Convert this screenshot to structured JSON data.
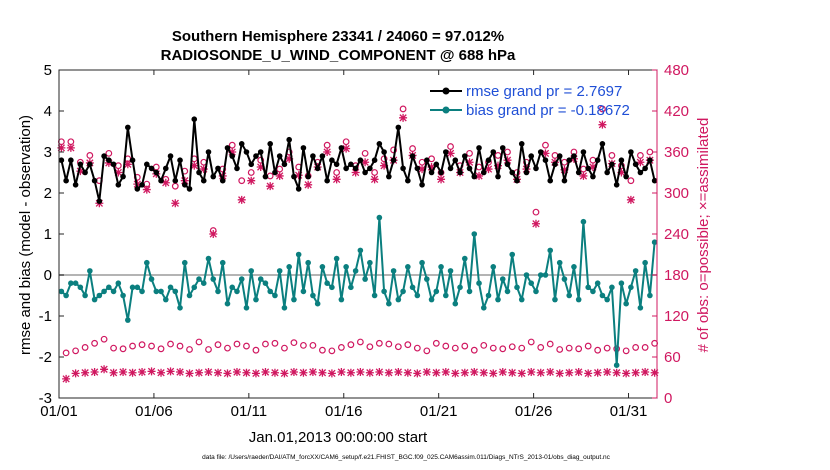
{
  "chart_data": {
    "type": "line",
    "title_line1": "Southern Hemisphere 23341 / 24060 = 97.012%",
    "title_line2": "RADIOSONDE_U_WIND_COMPONENT @ 688 hPa",
    "xlabel": "Jan.01,2013 00:00:00 start",
    "ylabel_left": "rmse and bias (model - observation)",
    "ylabel_right": "# of obs: o=possible; ×=assimilated",
    "xlim": [
      0,
      31.5
    ],
    "ylim_left": [
      -3,
      5
    ],
    "ylim_right": [
      0,
      480
    ],
    "x_ticks": [
      0,
      5,
      10,
      15,
      20,
      25,
      30
    ],
    "x_tick_labels": [
      "01/01",
      "01/06",
      "01/11",
      "01/16",
      "01/21",
      "01/26",
      "01/31"
    ],
    "y_ticks_left": [
      -3,
      -2,
      -1,
      0,
      1,
      2,
      3,
      4,
      5
    ],
    "y_tick_labels_left": [
      "-3",
      "-2",
      "-1",
      "0",
      "1",
      "2",
      "3",
      "4",
      "5"
    ],
    "y_ticks_right": [
      0,
      60,
      120,
      180,
      240,
      300,
      360,
      420,
      480
    ],
    "y_tick_labels_right": [
      "0",
      "60",
      "120",
      "180",
      "240",
      "300",
      "360",
      "420",
      "480"
    ],
    "legend": {
      "position": "top-right",
      "entries": [
        "rmse grand pr = 2.7697",
        "bias grand pr = -0.18672"
      ]
    },
    "footer": "data file: /Users/raeder/DAI/ATM_forcXX/CAM6_setup/f.e21.FHIST_BGC.f09_025.CAM6assim.011/Diags_NTrS_2013-01/obs_diag_output.nc",
    "colors": {
      "rmse": "#000000",
      "bias": "#0b7f7f",
      "obs": "#d01860",
      "zero_line": "#b4b4b4",
      "legend_text": "#1f4fd6"
    },
    "x": [
      0.125,
      0.375,
      0.625,
      0.875,
      1.125,
      1.375,
      1.625,
      1.875,
      2.125,
      2.375,
      2.625,
      2.875,
      3.125,
      3.375,
      3.625,
      3.875,
      4.125,
      4.375,
      4.625,
      4.875,
      5.125,
      5.375,
      5.625,
      5.875,
      6.125,
      6.375,
      6.625,
      6.875,
      7.125,
      7.375,
      7.625,
      7.875,
      8.125,
      8.375,
      8.625,
      8.875,
      9.125,
      9.375,
      9.625,
      9.875,
      10.125,
      10.375,
      10.625,
      10.875,
      11.125,
      11.375,
      11.625,
      11.875,
      12.125,
      12.375,
      12.625,
      12.875,
      13.125,
      13.375,
      13.625,
      13.875,
      14.125,
      14.375,
      14.625,
      14.875,
      15.125,
      15.375,
      15.625,
      15.875,
      16.125,
      16.375,
      16.625,
      16.875,
      17.125,
      17.375,
      17.625,
      17.875,
      18.125,
      18.375,
      18.625,
      18.875,
      19.125,
      19.375,
      19.625,
      19.875,
      20.125,
      20.375,
      20.625,
      20.875,
      21.125,
      21.375,
      21.625,
      21.875,
      22.125,
      22.375,
      22.625,
      22.875,
      23.125,
      23.375,
      23.625,
      23.875,
      24.125,
      24.375,
      24.625,
      24.875,
      25.125,
      25.375,
      25.625,
      25.875,
      26.125,
      26.375,
      26.625,
      26.875,
      27.125,
      27.375,
      27.625,
      27.875,
      28.125,
      28.375,
      28.625,
      28.875,
      29.125,
      29.375,
      29.625,
      29.875,
      30.125,
      30.375,
      30.625,
      30.875,
      31.125,
      31.375
    ],
    "series": [
      {
        "name": "rmse",
        "axis": "left",
        "values": [
          2.8,
          2.3,
          2.8,
          2.2,
          2.7,
          2.5,
          2.7,
          2.3,
          1.8,
          2.9,
          2.8,
          2.7,
          2.2,
          2.4,
          3.6,
          2.8,
          2.1,
          2.2,
          2.7,
          2.6,
          2.5,
          2.3,
          2.6,
          2.9,
          2.3,
          2.8,
          2.2,
          2.1,
          3.8,
          2.5,
          2.3,
          3.0,
          2.4,
          2.6,
          2.3,
          3.1,
          2.9,
          2.6,
          3.2,
          3.0,
          2.7,
          2.9,
          3.0,
          2.4,
          3.2,
          2.5,
          2.9,
          2.7,
          3.3,
          2.4,
          2.1,
          3.1,
          2.4,
          2.9,
          2.6,
          2.9,
          2.3,
          2.8,
          2.7,
          3.1,
          2.6,
          2.7,
          2.6,
          2.8,
          2.5,
          2.6,
          2.8,
          3.2,
          3.0,
          2.4,
          2.8,
          3.6,
          2.6,
          2.3,
          2.9,
          2.6,
          2.2,
          2.8,
          2.5,
          2.7,
          2.5,
          3.0,
          2.6,
          2.8,
          2.5,
          2.9,
          2.6,
          2.4,
          3.1,
          2.5,
          2.8,
          3.0,
          2.4,
          3.1,
          2.7,
          2.5,
          2.3,
          3.2,
          2.5,
          2.9,
          2.6,
          3.0,
          2.8,
          2.3,
          2.7,
          2.9,
          2.3,
          2.8,
          2.9,
          2.5,
          3.0,
          2.6,
          2.4,
          2.8,
          3.2,
          2.5,
          2.7,
          2.2,
          2.8,
          2.4,
          3.0,
          2.7,
          2.5,
          2.6,
          2.8,
          2.3
        ]
      },
      {
        "name": "bias",
        "axis": "left",
        "values": [
          -0.4,
          -0.5,
          -0.2,
          -0.2,
          -0.3,
          -0.5,
          0.1,
          -0.6,
          -0.5,
          -0.4,
          -0.3,
          -0.4,
          -0.2,
          -0.5,
          -1.1,
          -0.3,
          -0.3,
          -0.4,
          0.3,
          -0.1,
          -0.4,
          -0.4,
          -0.6,
          -0.3,
          -0.4,
          -0.8,
          0.3,
          -0.5,
          -0.3,
          -0.1,
          -0.2,
          0.4,
          -0.1,
          -0.4,
          0.3,
          -0.7,
          -0.3,
          -0.4,
          -0.1,
          -0.8,
          0.1,
          -0.6,
          -0.1,
          -0.2,
          -0.4,
          -0.5,
          0.1,
          -0.8,
          0.2,
          -0.6,
          0.5,
          -0.4,
          0.3,
          -0.5,
          -0.7,
          0.2,
          -0.2,
          -0.3,
          0.4,
          -0.6,
          0.2,
          -0.3,
          0.1,
          0.6,
          -0.1,
          0.3,
          -0.5,
          1.4,
          -0.4,
          -0.7,
          0.1,
          -0.6,
          -0.4,
          0.2,
          -0.3,
          -0.5,
          0.3,
          -0.1,
          -0.6,
          -0.4,
          0.2,
          -0.5,
          0.1,
          -0.7,
          -0.3,
          0.4,
          -0.4,
          1.0,
          -0.2,
          -0.8,
          -0.5,
          0.2,
          -0.6,
          -0.1,
          -0.4,
          0.5,
          -0.3,
          -0.6,
          0.0,
          -0.2,
          -0.4,
          0.0,
          0.0,
          0.6,
          -0.6,
          0.3,
          -0.1,
          -0.5,
          0.2,
          -0.6,
          1.3,
          -0.3,
          -0.4,
          -0.2,
          -0.5,
          -0.6,
          -0.3,
          -2.2,
          -0.2,
          -0.7,
          -0.3,
          0.1,
          -0.8,
          0.3,
          -0.5,
          0.8
        ]
      },
      {
        "name": "possible",
        "axis": "right",
        "marker": "o",
        "values": [
          375,
          66,
          375,
          69,
          345,
          74,
          355,
          80,
          318,
          86,
          358,
          73,
          340,
          72,
          350,
          76,
          323,
          78,
          313,
          76,
          338,
          72,
          320,
          79,
          310,
          76,
          332,
          71,
          350,
          82,
          345,
          71,
          245,
          78,
          335,
          73,
          370,
          79,
          318,
          76,
          330,
          70,
          348,
          79,
          325,
          80,
          335,
          73,
          360,
          81,
          338,
          77,
          325,
          77,
          345,
          70,
          370,
          69,
          330,
          74,
          375,
          78,
          340,
          82,
          358,
          75,
          330,
          80,
          350,
          79,
          363,
          75,
          423,
          78,
          365,
          73,
          345,
          69,
          350,
          80,
          330,
          76,
          368,
          73,
          340,
          76,
          358,
          70,
          338,
          77,
          345,
          73,
          355,
          72,
          360,
          75,
          330,
          73,
          345,
          82,
          272,
          74,
          370,
          79,
          355,
          71,
          345,
          73,
          360,
          72,
          335,
          76,
          348,
          70,
          423,
          73,
          355,
          72,
          340,
          69,
          318,
          74,
          355,
          74,
          360,
          80
        ]
      },
      {
        "name": "assimilated",
        "axis": "right",
        "marker": "x",
        "values": [
          366,
          28,
          366,
          36,
          332,
          37,
          344,
          38,
          285,
          42,
          344,
          37,
          330,
          38,
          342,
          37,
          313,
          38,
          305,
          39,
          328,
          37,
          315,
          39,
          285,
          38,
          318,
          36,
          340,
          37,
          335,
          38,
          240,
          37,
          325,
          36,
          360,
          38,
          290,
          37,
          318,
          36,
          338,
          38,
          310,
          37,
          325,
          36,
          350,
          38,
          326,
          37,
          312,
          38,
          338,
          37,
          360,
          36,
          320,
          38,
          365,
          37,
          330,
          38,
          345,
          37,
          320,
          38,
          340,
          37,
          348,
          38,
          410,
          37,
          355,
          36,
          335,
          38,
          338,
          37,
          320,
          38,
          358,
          36,
          330,
          37,
          345,
          38,
          325,
          37,
          335,
          36,
          340,
          38,
          348,
          37,
          320,
          36,
          335,
          38,
          255,
          37,
          358,
          38,
          345,
          36,
          334,
          37,
          350,
          38,
          325,
          36,
          338,
          37,
          400,
          38,
          343,
          37,
          330,
          36,
          290,
          37,
          345,
          38,
          348,
          37
        ]
      }
    ]
  }
}
